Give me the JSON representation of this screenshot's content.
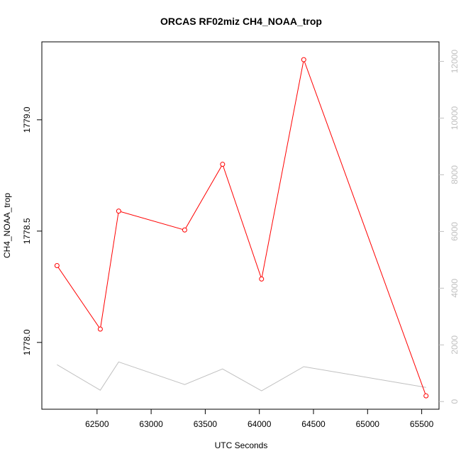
{
  "chart_data": {
    "type": "line",
    "title": "ORCAS RF02miz CH4_NOAA_trop",
    "xlabel": "UTC Seconds",
    "ylabel": "CH4_NOAA_trop",
    "xlim": [
      61990,
      65660
    ],
    "ylim": [
      1777.7,
      1779.35
    ],
    "y2lim": [
      -270,
      12690
    ],
    "x_ticks": [
      62500,
      63000,
      63500,
      64000,
      64500,
      65000,
      65500
    ],
    "x_tick_labels": [
      "62500",
      "63000",
      "63500",
      "64000",
      "64500",
      "65000",
      "65500"
    ],
    "y_ticks": [
      1778.0,
      1778.5,
      1779.0
    ],
    "y_tick_labels": [
      "1778.0",
      "1778.5",
      "1779.0"
    ],
    "y2_ticks": [
      0,
      2000,
      4000,
      6000,
      8000,
      10000,
      12000
    ],
    "y2_tick_labels": [
      "0",
      "2000",
      "4000",
      "6000",
      "8000",
      "10000",
      "12000"
    ],
    "grid": false,
    "series": [
      {
        "axis": "left",
        "color": "#ff0000",
        "marker": "open-circle",
        "x": [
          62130,
          62530,
          62700,
          63310,
          63660,
          64020,
          64410,
          65540
        ],
        "y": [
          1778.345,
          1778.06,
          1778.59,
          1778.505,
          1778.8,
          1778.285,
          1779.27,
          1777.76
        ]
      },
      {
        "axis": "right",
        "color": "#c0c0c0",
        "marker": "none",
        "x": [
          62130,
          62530,
          62700,
          63310,
          63660,
          64020,
          64410,
          65540
        ],
        "y": [
          1300,
          400,
          1400,
          600,
          1150,
          380,
          1230,
          500
        ]
      }
    ]
  }
}
